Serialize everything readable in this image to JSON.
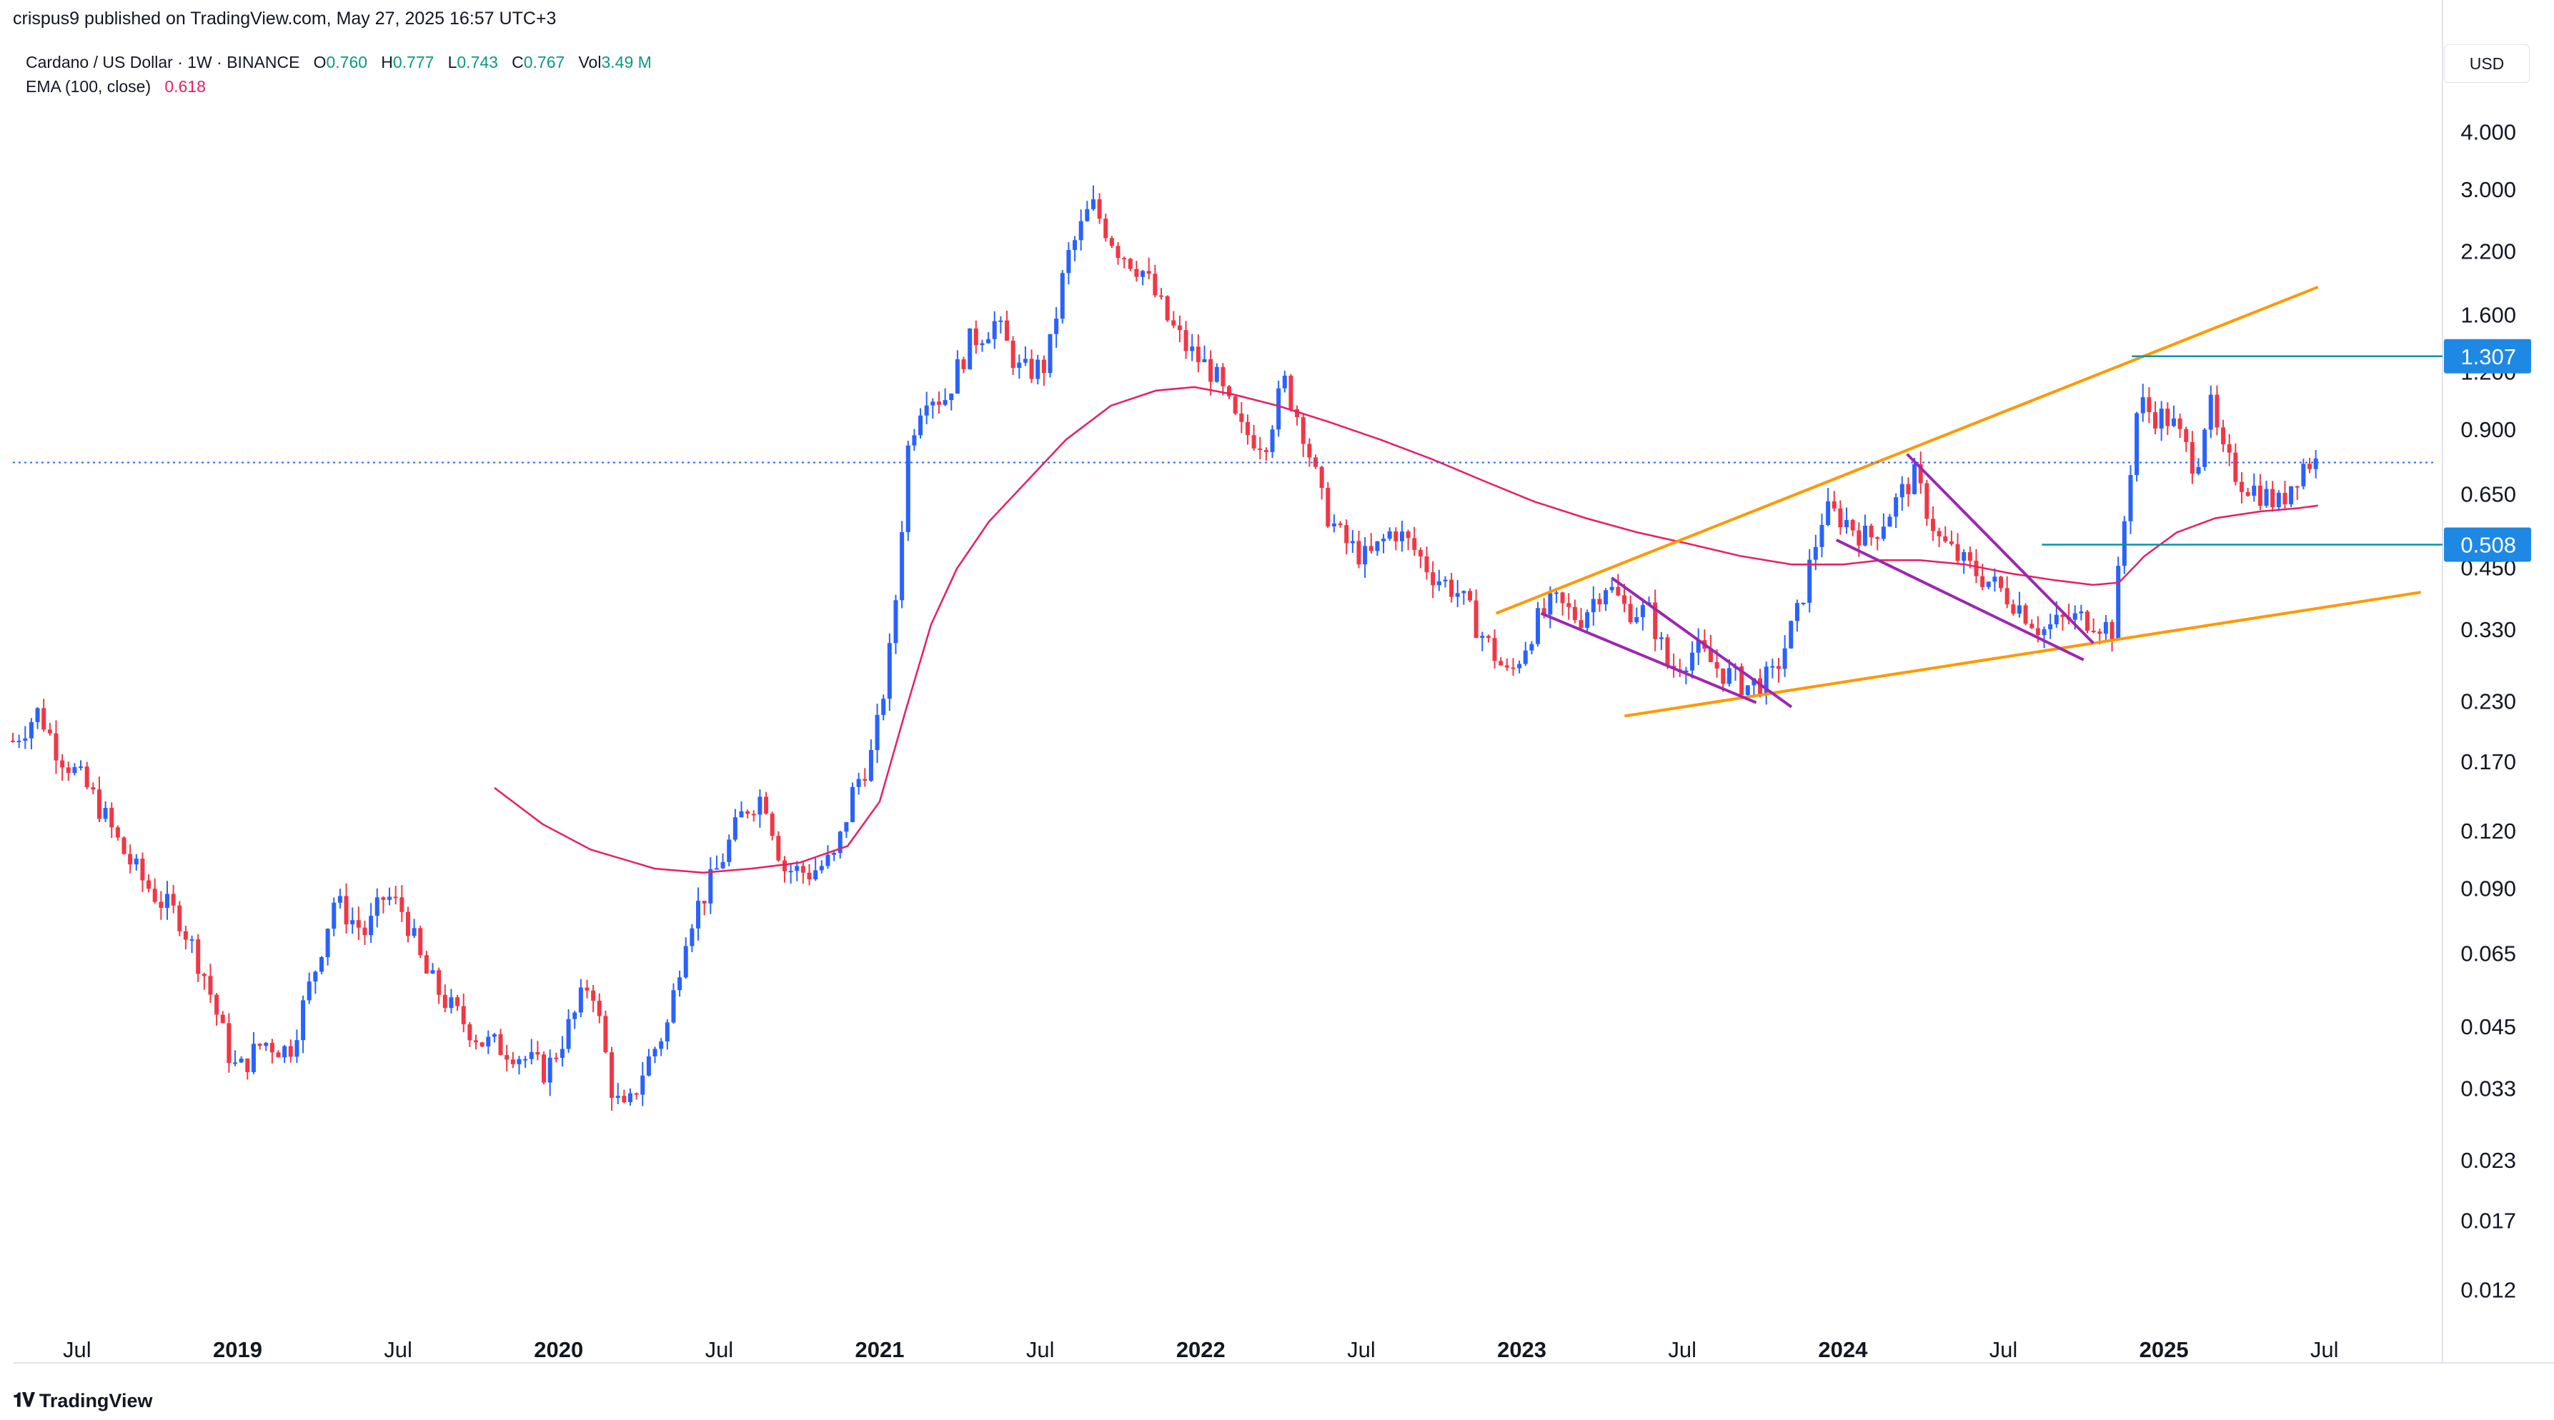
{
  "header": {
    "published_line": "crispus9 published on TradingView.com, May 27, 2025 16:57 UTC+3"
  },
  "legend": {
    "symbol": "Cardano / US Dollar · 1W · BINANCE",
    "o_label": "O",
    "o_value": "0.760",
    "h_label": "H",
    "h_value": "0.777",
    "l_label": "L",
    "l_value": "0.743",
    "c_label": "C",
    "c_value": "0.767",
    "vol_label": "Vol",
    "vol_value": "3.49 M",
    "ema_label": "EMA (100, close)",
    "ema_value": "0.618"
  },
  "currency_button": "USD",
  "footer": {
    "brand": "TradingView"
  },
  "colors": {
    "up": "#2962ff",
    "down": "#f23645",
    "ema": "#e91e63",
    "channel": "#ff9800",
    "wedge": "#9c27b0",
    "level": "#0097a7",
    "current": "#2962ff",
    "axis_text": "#131722"
  },
  "chart_data": {
    "type": "candlestick",
    "title": "Cardano / US Dollar · 1W · BINANCE",
    "y_scale": "log",
    "ylim": [
      0.0105,
      4.9
    ],
    "y_ticks": [
      "4.000",
      "3.000",
      "2.200",
      "1.600",
      "1.200",
      "0.900",
      "0.650",
      "0.450",
      "0.330",
      "0.230",
      "0.170",
      "0.120",
      "0.090",
      "0.065",
      "0.045",
      "0.033",
      "0.023",
      "0.017",
      "0.012"
    ],
    "x_range": [
      2018.3,
      2025.85
    ],
    "x_ticks": [
      {
        "x": 2018.5,
        "label": "Jul"
      },
      {
        "x": 2019.0,
        "label": "2019"
      },
      {
        "x": 2019.5,
        "label": "Jul"
      },
      {
        "x": 2020.0,
        "label": "2020"
      },
      {
        "x": 2020.5,
        "label": "Jul"
      },
      {
        "x": 2021.0,
        "label": "2021"
      },
      {
        "x": 2021.5,
        "label": "Jul"
      },
      {
        "x": 2022.0,
        "label": "2022"
      },
      {
        "x": 2022.5,
        "label": "Jul"
      },
      {
        "x": 2023.0,
        "label": "2023"
      },
      {
        "x": 2023.5,
        "label": "Jul"
      },
      {
        "x": 2024.0,
        "label": "2024"
      },
      {
        "x": 2024.5,
        "label": "Jul"
      },
      {
        "x": 2025.0,
        "label": "2025"
      },
      {
        "x": 2025.5,
        "label": "Jul"
      }
    ],
    "price_path": [
      [
        2018.3,
        0.19
      ],
      [
        2018.38,
        0.22
      ],
      [
        2018.44,
        0.18
      ],
      [
        2018.5,
        0.16
      ],
      [
        2018.56,
        0.14
      ],
      [
        2018.64,
        0.11
      ],
      [
        2018.7,
        0.095
      ],
      [
        2018.76,
        0.085
      ],
      [
        2018.82,
        0.078
      ],
      [
        2018.9,
        0.058
      ],
      [
        2018.97,
        0.04
      ],
      [
        2019.0,
        0.036
      ],
      [
        2019.08,
        0.042
      ],
      [
        2019.16,
        0.04
      ],
      [
        2019.24,
        0.06
      ],
      [
        2019.3,
        0.085
      ],
      [
        2019.4,
        0.072
      ],
      [
        2019.46,
        0.088
      ],
      [
        2019.52,
        0.08
      ],
      [
        2019.58,
        0.06
      ],
      [
        2019.66,
        0.05
      ],
      [
        2019.76,
        0.042
      ],
      [
        2019.86,
        0.04
      ],
      [
        2019.96,
        0.036
      ],
      [
        2020.05,
        0.048
      ],
      [
        2020.1,
        0.058
      ],
      [
        2020.17,
        0.032
      ],
      [
        2020.21,
        0.029
      ],
      [
        2020.26,
        0.036
      ],
      [
        2020.34,
        0.046
      ],
      [
        2020.4,
        0.075
      ],
      [
        2020.48,
        0.095
      ],
      [
        2020.58,
        0.135
      ],
      [
        2020.64,
        0.145
      ],
      [
        2020.7,
        0.1
      ],
      [
        2020.78,
        0.098
      ],
      [
        2020.86,
        0.105
      ],
      [
        2020.92,
        0.15
      ],
      [
        2020.98,
        0.18
      ],
      [
        2021.04,
        0.32
      ],
      [
        2021.09,
        0.85
      ],
      [
        2021.14,
        1.1
      ],
      [
        2021.2,
        1.05
      ],
      [
        2021.28,
        1.4
      ],
      [
        2021.36,
        1.55
      ],
      [
        2021.44,
        1.2
      ],
      [
        2021.52,
        1.25
      ],
      [
        2021.58,
        2.1
      ],
      [
        2021.66,
        2.8
      ],
      [
        2021.74,
        2.25
      ],
      [
        2021.82,
        2.0
      ],
      [
        2021.9,
        1.55
      ],
      [
        2021.96,
        1.35
      ],
      [
        2022.04,
        1.2
      ],
      [
        2022.12,
        0.9
      ],
      [
        2022.2,
        0.85
      ],
      [
        2022.26,
        1.15
      ],
      [
        2022.32,
        0.9
      ],
      [
        2022.38,
        0.62
      ],
      [
        2022.44,
        0.52
      ],
      [
        2022.52,
        0.47
      ],
      [
        2022.6,
        0.55
      ],
      [
        2022.66,
        0.5
      ],
      [
        2022.72,
        0.44
      ],
      [
        2022.8,
        0.4
      ],
      [
        2022.88,
        0.32
      ],
      [
        2022.96,
        0.26
      ],
      [
        2023.04,
        0.34
      ],
      [
        2023.1,
        0.38
      ],
      [
        2023.18,
        0.35
      ],
      [
        2023.26,
        0.42
      ],
      [
        2023.32,
        0.37
      ],
      [
        2023.4,
        0.36
      ],
      [
        2023.46,
        0.27
      ],
      [
        2023.54,
        0.3
      ],
      [
        2023.62,
        0.27
      ],
      [
        2023.7,
        0.25
      ],
      [
        2023.78,
        0.26
      ],
      [
        2023.86,
        0.36
      ],
      [
        2023.94,
        0.6
      ],
      [
        2024.0,
        0.58
      ],
      [
        2024.08,
        0.52
      ],
      [
        2024.16,
        0.62
      ],
      [
        2024.22,
        0.72
      ],
      [
        2024.3,
        0.52
      ],
      [
        2024.38,
        0.46
      ],
      [
        2024.46,
        0.42
      ],
      [
        2024.54,
        0.38
      ],
      [
        2024.62,
        0.33
      ],
      [
        2024.7,
        0.35
      ],
      [
        2024.78,
        0.35
      ],
      [
        2024.84,
        0.33
      ],
      [
        2024.88,
        0.6
      ],
      [
        2024.92,
        1.05
      ],
      [
        2024.96,
        0.98
      ],
      [
        2025.02,
        0.95
      ],
      [
        2025.1,
        0.75
      ],
      [
        2025.14,
        1.05
      ],
      [
        2025.18,
        0.8
      ],
      [
        2025.24,
        0.7
      ],
      [
        2025.3,
        0.66
      ],
      [
        2025.36,
        0.62
      ],
      [
        2025.4,
        0.7
      ],
      [
        2025.44,
        0.77
      ],
      [
        2025.48,
        0.767
      ]
    ],
    "ema_path": [
      [
        2019.8,
        0.15
      ],
      [
        2019.95,
        0.125
      ],
      [
        2020.1,
        0.11
      ],
      [
        2020.3,
        0.1
      ],
      [
        2020.45,
        0.098
      ],
      [
        2020.6,
        0.1
      ],
      [
        2020.75,
        0.103
      ],
      [
        2020.9,
        0.112
      ],
      [
        2021.0,
        0.14
      ],
      [
        2021.08,
        0.22
      ],
      [
        2021.16,
        0.34
      ],
      [
        2021.24,
        0.45
      ],
      [
        2021.34,
        0.57
      ],
      [
        2021.46,
        0.7
      ],
      [
        2021.58,
        0.86
      ],
      [
        2021.72,
        1.02
      ],
      [
        2021.86,
        1.1
      ],
      [
        2021.98,
        1.12
      ],
      [
        2022.1,
        1.08
      ],
      [
        2022.24,
        1.02
      ],
      [
        2022.4,
        0.94
      ],
      [
        2022.56,
        0.86
      ],
      [
        2022.72,
        0.78
      ],
      [
        2022.88,
        0.7
      ],
      [
        2023.04,
        0.63
      ],
      [
        2023.2,
        0.58
      ],
      [
        2023.36,
        0.54
      ],
      [
        2023.52,
        0.51
      ],
      [
        2023.68,
        0.48
      ],
      [
        2023.84,
        0.46
      ],
      [
        2024.0,
        0.46
      ],
      [
        2024.12,
        0.47
      ],
      [
        2024.24,
        0.47
      ],
      [
        2024.38,
        0.46
      ],
      [
        2024.52,
        0.44
      ],
      [
        2024.66,
        0.425
      ],
      [
        2024.78,
        0.415
      ],
      [
        2024.86,
        0.42
      ],
      [
        2024.94,
        0.48
      ],
      [
        2025.04,
        0.54
      ],
      [
        2025.16,
        0.58
      ],
      [
        2025.3,
        0.6
      ],
      [
        2025.42,
        0.61
      ],
      [
        2025.48,
        0.618
      ]
    ],
    "annotations": {
      "rising_channel_upper": [
        [
          2022.92,
          0.36
        ],
        [
          2025.48,
          1.85
        ]
      ],
      "rising_channel_lower": [
        [
          2023.32,
          0.215
        ],
        [
          2025.8,
          0.4
        ]
      ],
      "falling_wedge_1": [
        [
          [
            2023.28,
            0.43
          ],
          [
            2023.84,
            0.225
          ]
        ],
        [
          [
            2023.06,
            0.36
          ],
          [
            2023.73,
            0.23
          ]
        ]
      ],
      "falling_wedge_2": [
        [
          [
            2024.2,
            0.8
          ],
          [
            2024.78,
            0.31
          ]
        ],
        [
          [
            2023.98,
            0.52
          ],
          [
            2024.75,
            0.285
          ]
        ]
      ],
      "horizontal_levels": [
        {
          "value": 1.307,
          "label": "1.307",
          "from_x": 2024.9
        },
        {
          "value": 0.508,
          "label": "0.508",
          "from_x": 2024.62
        }
      ],
      "current_price": 0.767
    }
  }
}
